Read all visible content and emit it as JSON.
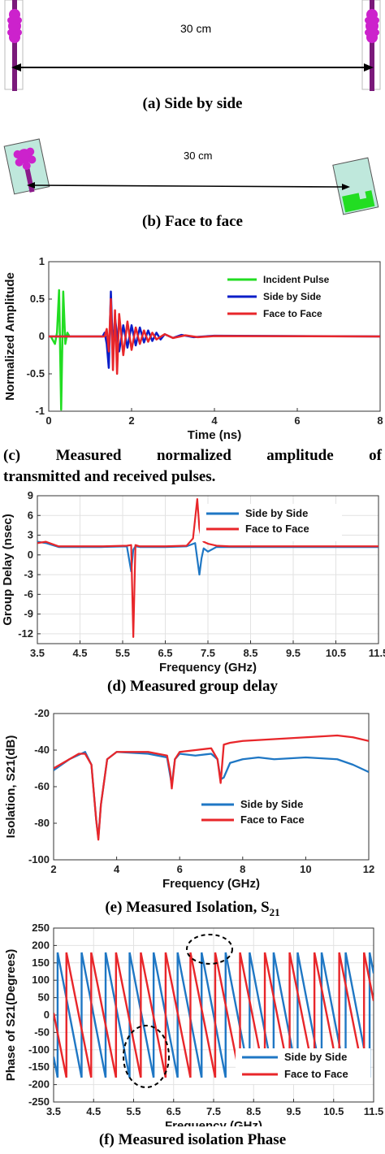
{
  "panels": {
    "a": {
      "caption": "(a) Side by side",
      "distance": "30 cm"
    },
    "b": {
      "caption": "(b) Face to face",
      "distance": "30 cm"
    },
    "c": {
      "caption_words": [
        "(c)",
        "Measured",
        "normalized",
        "amplitude",
        "of"
      ],
      "caption_line2": "transmitted and received pulses."
    },
    "d": {
      "caption": "(d) Measured group delay"
    },
    "e": {
      "caption_main": "(e) Measured Isolation, S",
      "caption_sub": "21"
    },
    "f": {
      "caption": "(f) Measured isolation Phase"
    }
  },
  "colors": {
    "green": "#22dd22",
    "blue": "#1f77c4",
    "blue_dark": "#0b1ec8",
    "red": "#e8262a",
    "antenna_magenta": "#cc22cc",
    "substrate": "#bfe8dc"
  },
  "chart_data": [
    {
      "id": "c",
      "type": "line",
      "xlabel": "Time (ns)",
      "ylabel": "Normalized Amplitude",
      "xlim": [
        0,
        8
      ],
      "ylim": [
        -1,
        1
      ],
      "xticks": [
        "0",
        "2",
        "4",
        "6",
        "8"
      ],
      "yticks": [
        "1",
        "0.5",
        "0",
        "-0.5",
        "-1"
      ],
      "legend_position": "top-right",
      "series": [
        {
          "name": "Incident Pulse",
          "color": "#22dd22",
          "x": [
            0.05,
            0.15,
            0.2,
            0.25,
            0.3,
            0.35,
            0.4,
            0.45,
            0.5
          ],
          "y": [
            0,
            -0.1,
            0.05,
            0.62,
            -0.98,
            0.6,
            -0.1,
            0.05,
            0
          ]
        },
        {
          "name": "Side by Side",
          "color": "#0b1ec8",
          "x": [
            0,
            1.3,
            1.35,
            1.4,
            1.45,
            1.5,
            1.55,
            1.6,
            1.7,
            1.8,
            1.9,
            2.0,
            2.1,
            2.2,
            2.3,
            2.4,
            2.5,
            2.6,
            2.7,
            2.8,
            3.0,
            3.2,
            3.5,
            4.0,
            8.0
          ],
          "y": [
            0,
            0,
            0.05,
            -0.1,
            -0.42,
            0.6,
            -0.2,
            0.25,
            -0.2,
            0.15,
            -0.15,
            0.15,
            -0.12,
            0.12,
            -0.08,
            0.08,
            -0.06,
            0.05,
            -0.04,
            0.03,
            -0.02,
            0.02,
            -0.01,
            0.01,
            0
          ]
        },
        {
          "name": "Face to Face",
          "color": "#e8262a",
          "x": [
            0,
            1.35,
            1.4,
            1.45,
            1.5,
            1.55,
            1.6,
            1.65,
            1.7,
            1.8,
            1.9,
            2.0,
            2.1,
            2.2,
            2.3,
            2.4,
            2.5,
            2.6,
            2.8,
            3.0,
            3.3,
            3.6,
            4.0,
            8.0
          ],
          "y": [
            0,
            0,
            0.1,
            -0.2,
            0.5,
            -0.45,
            0.35,
            -0.5,
            0.3,
            -0.25,
            0.2,
            -0.18,
            0.12,
            -0.1,
            0.08,
            -0.07,
            0.05,
            -0.04,
            0.03,
            -0.02,
            0.015,
            -0.01,
            0.005,
            0
          ]
        }
      ]
    },
    {
      "id": "d",
      "type": "line",
      "xlabel": "Frequency (GHz)",
      "ylabel": "Group Delay (nsec)",
      "xlim": [
        3.5,
        11.5
      ],
      "ylim": [
        -13.5,
        9
      ],
      "xticks": [
        "3.5",
        "4.5",
        "5.5",
        "6.5",
        "7.5",
        "8.5",
        "9.5",
        "10.5",
        "11.5"
      ],
      "yticks": [
        "9",
        "6",
        "3",
        "0",
        "-3",
        "-6",
        "-9",
        "-12"
      ],
      "grid": true,
      "legend_position": "top-right",
      "series": [
        {
          "name": "Side by Side",
          "color": "#1f77c4",
          "x": [
            3.5,
            3.7,
            4.0,
            5.0,
            5.6,
            5.7,
            5.75,
            5.8,
            5.9,
            6.5,
            7.0,
            7.2,
            7.3,
            7.35,
            7.4,
            7.5,
            7.7,
            8.0,
            9.0,
            10.0,
            11.5
          ],
          "y": [
            2.0,
            1.8,
            1.2,
            1.2,
            1.3,
            -2.5,
            0.8,
            1.3,
            1.2,
            1.2,
            1.3,
            1.8,
            -3.0,
            -0.5,
            1.0,
            0.5,
            1.2,
            1.2,
            1.2,
            1.2,
            1.2
          ]
        },
        {
          "name": "Face to Face",
          "color": "#e8262a",
          "x": [
            3.5,
            3.7,
            4.0,
            5.0,
            5.6,
            5.7,
            5.75,
            5.8,
            5.9,
            6.5,
            7.0,
            7.15,
            7.25,
            7.3,
            7.35,
            7.4,
            7.5,
            7.7,
            8.0,
            9.0,
            10.0,
            11.5
          ],
          "y": [
            1.8,
            2.0,
            1.3,
            1.3,
            1.4,
            1.5,
            -12.5,
            1.5,
            1.3,
            1.3,
            1.4,
            2.5,
            8.5,
            4.0,
            2.5,
            2.0,
            1.7,
            1.4,
            1.3,
            1.3,
            1.3,
            1.3
          ]
        }
      ]
    },
    {
      "id": "e",
      "type": "line",
      "xlabel": "Frequency (GHz)",
      "ylabel": "Isolation, S21(dB)",
      "xlim": [
        2,
        12
      ],
      "ylim": [
        -100,
        -20
      ],
      "xticks": [
        "2",
        "4",
        "6",
        "8",
        "10",
        "12"
      ],
      "yticks": [
        "-20",
        "-40",
        "-60",
        "-80",
        "-100"
      ],
      "legend_position": "center-right",
      "series": [
        {
          "name": "Side by Side",
          "color": "#1f77c4",
          "x": [
            2,
            2.5,
            3,
            3.2,
            3.35,
            3.42,
            3.5,
            3.7,
            4,
            5,
            5.6,
            5.7,
            5.75,
            5.85,
            6,
            6.5,
            7,
            7.2,
            7.3,
            7.4,
            7.6,
            8,
            8.5,
            9,
            10,
            11,
            11.5,
            12
          ],
          "y": [
            -51,
            -45,
            -41,
            -48,
            -78,
            -88,
            -70,
            -45,
            -41,
            -42,
            -44,
            -54,
            -59,
            -45,
            -42,
            -43,
            -42,
            -45,
            -56,
            -55,
            -47,
            -45,
            -44,
            -45,
            -44,
            -45,
            -48,
            -52
          ]
        },
        {
          "name": "Face to Face",
          "color": "#e8262a",
          "x": [
            2,
            2.5,
            2.8,
            3,
            3.2,
            3.35,
            3.42,
            3.5,
            3.7,
            4,
            5,
            5.6,
            5.7,
            5.75,
            5.85,
            6,
            6.5,
            7,
            7.2,
            7.3,
            7.4,
            7.6,
            8,
            9,
            10,
            11,
            11.5,
            12
          ],
          "y": [
            -50,
            -45,
            -42,
            -42,
            -48,
            -78,
            -89,
            -70,
            -45,
            -41,
            -41,
            -43,
            -52,
            -61,
            -45,
            -41,
            -40,
            -39,
            -45,
            -58,
            -37,
            -36,
            -35,
            -34,
            -33,
            -32,
            -33,
            -35
          ]
        }
      ]
    },
    {
      "id": "f",
      "type": "line",
      "xlabel": "Frequency (GHz)",
      "ylabel": "Phase of S21(Degrees)",
      "xlim": [
        3.5,
        11.5
      ],
      "ylim": [
        -250,
        250
      ],
      "xticks": [
        "3.5",
        "4.5",
        "5.5",
        "6.5",
        "7.5",
        "8.5",
        "9.5",
        "10.5",
        "11.5"
      ],
      "yticks": [
        "250",
        "200",
        "150",
        "100",
        "50",
        "0",
        "-50",
        "-100",
        "-150",
        "-200",
        "-250"
      ],
      "grid": true,
      "legend_position": "bottom-right",
      "series": [
        {
          "name": "Side by Side",
          "color": "#1f77c4",
          "wrap_period_ghz": 0.6,
          "phase_offset_ghz": 3.6,
          "x": [
            3.5,
            11.5
          ],
          "y": [
            180,
            -180
          ]
        },
        {
          "name": "Face to Face",
          "color": "#e8262a",
          "wrap_period_ghz": 0.62,
          "phase_offset_ghz": 3.82,
          "x": [
            3.5,
            11.5
          ],
          "y": [
            180,
            -180
          ]
        }
      ]
    }
  ]
}
